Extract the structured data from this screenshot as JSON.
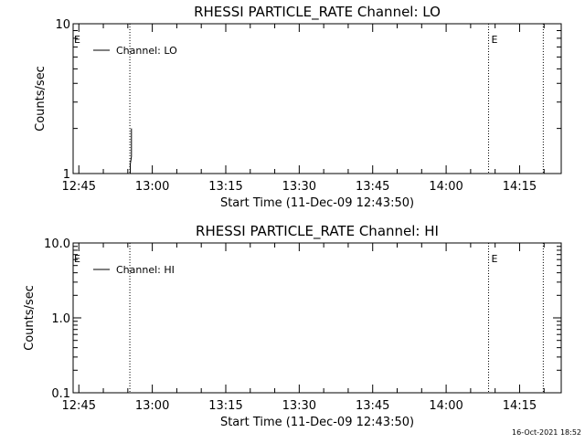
{
  "chart_data": [
    {
      "type": "line",
      "title": "RHESSI PARTICLE_RATE Channel: LO",
      "xlabel": "Start Time (11-Dec-09 12:43:50)",
      "ylabel": "Counts/sec",
      "y_scale": "log",
      "ylim": [
        1,
        10
      ],
      "y_ticks": [
        1,
        10
      ],
      "y_tick_labels": [
        "1",
        "10"
      ],
      "xlim": [
        "12:43:50",
        "14:23:30"
      ],
      "x_ticks": [
        "12:45",
        "13:00",
        "13:15",
        "13:30",
        "13:45",
        "14:00",
        "14:15"
      ],
      "legend": {
        "position": "top-left",
        "entries": [
          "Channel: LO"
        ]
      },
      "series": [
        {
          "name": "Channel: LO",
          "x": [
            "12:55:30",
            "12:55:30",
            "12:55:45",
            "12:55:45"
          ],
          "y": [
            1.0,
            1.15,
            1.3,
            2.0
          ]
        }
      ],
      "markers": [
        {
          "time": "12:55:25",
          "label": ""
        },
        {
          "time": "14:08:40",
          "label": "E"
        },
        {
          "time": "14:19:50",
          "label": ""
        }
      ],
      "corner_label": "E"
    },
    {
      "type": "line",
      "title": "RHESSI PARTICLE_RATE Channel: HI",
      "xlabel": "Start Time (11-Dec-09 12:43:50)",
      "ylabel": "Counts/sec",
      "y_scale": "log",
      "ylim": [
        0.1,
        10
      ],
      "y_ticks": [
        0.1,
        1,
        10
      ],
      "y_tick_labels": [
        "0.1",
        "1.0",
        "10.0"
      ],
      "xlim": [
        "12:43:50",
        "14:23:30"
      ],
      "x_ticks": [
        "12:45",
        "13:00",
        "13:15",
        "13:30",
        "13:45",
        "14:00",
        "14:15"
      ],
      "legend": {
        "position": "top-left",
        "entries": [
          "Channel: HI"
        ]
      },
      "series": [
        {
          "name": "Channel: HI",
          "x": [],
          "y": []
        }
      ],
      "markers": [
        {
          "time": "12:55:25",
          "label": ""
        },
        {
          "time": "14:08:40",
          "label": "E"
        },
        {
          "time": "14:19:50",
          "label": ""
        }
      ],
      "corner_label": "E"
    }
  ],
  "timestamp": "16-Oct-2021 18:52"
}
